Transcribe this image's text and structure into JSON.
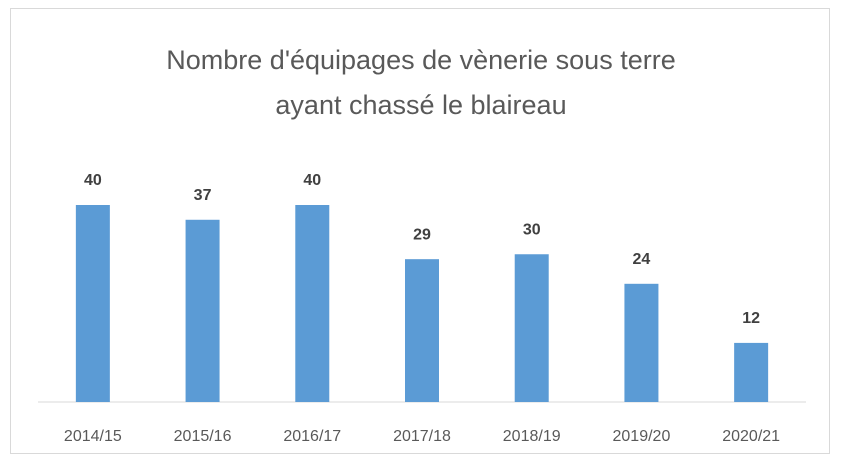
{
  "chart_data": {
    "type": "bar",
    "title": "Nombre d'équipages de vènerie sous terre ayant chassé le blaireau",
    "categories": [
      "2014/15",
      "2015/16",
      "2016/17",
      "2017/18",
      "2018/19",
      "2019/20",
      "2020/21"
    ],
    "values": [
      40,
      37,
      40,
      29,
      30,
      24,
      12
    ],
    "color": "#5b9bd5"
  }
}
